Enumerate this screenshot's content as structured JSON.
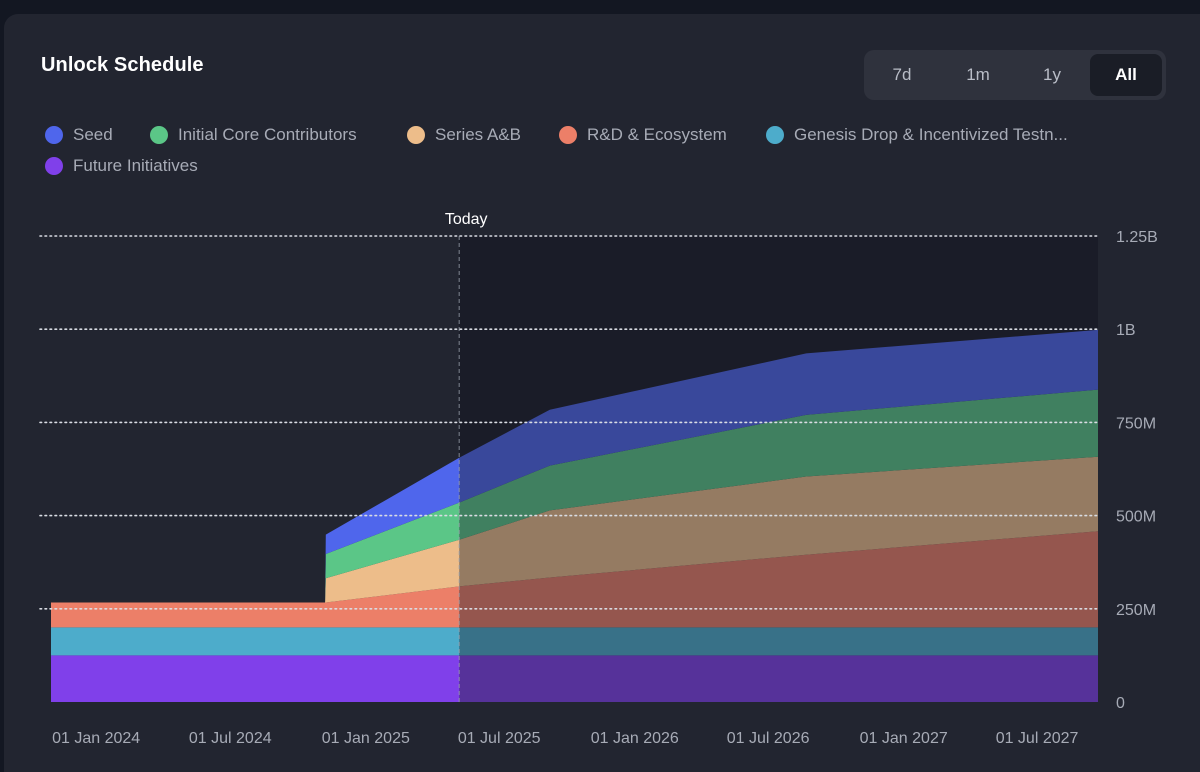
{
  "card": {
    "title": "Unlock Schedule"
  },
  "range_selector": {
    "options": [
      "7d",
      "1m",
      "1y",
      "All"
    ],
    "selected": "All"
  },
  "colors": {
    "background": "#222530",
    "future_shade": "#191b26",
    "grid": "#d9dce3",
    "axis_text": "#a7abb6"
  },
  "chart_data": {
    "type": "area",
    "stacked": true,
    "title": "",
    "xlabel": "",
    "ylabel": "",
    "today_label": "Today",
    "today": "2025-07-01",
    "x_range": [
      "2023-12-25",
      "2027-11-15"
    ],
    "ylim": [
      0,
      1250000000
    ],
    "y_ticks": [
      {
        "value": 0,
        "label": "0"
      },
      {
        "value": 250000000,
        "label": "250M"
      },
      {
        "value": 500000000,
        "label": "500M"
      },
      {
        "value": 750000000,
        "label": "750M"
      },
      {
        "value": 1000000000,
        "label": "1B"
      },
      {
        "value": 1250000000,
        "label": "1.25B"
      }
    ],
    "x_ticks": [
      {
        "date": "2024-01-01",
        "label": "01 Jan 2024"
      },
      {
        "date": "2024-07-01",
        "label": "01 Jul 2024"
      },
      {
        "date": "2025-01-01",
        "label": "01 Jan 2025"
      },
      {
        "date": "2025-07-01",
        "label": "01 Jul 2025"
      },
      {
        "date": "2026-01-01",
        "label": "01 Jan 2026"
      },
      {
        "date": "2026-07-01",
        "label": "01 Jul 2026"
      },
      {
        "date": "2027-01-01",
        "label": "01 Jan 2027"
      },
      {
        "date": "2027-07-01",
        "label": "01 Jul 2027"
      }
    ],
    "grid": true,
    "legend_position": "top-left",
    "x": [
      "2023-12-25",
      "2024-12-31",
      "2025-01-01",
      "2025-07-01",
      "2025-11-01",
      "2026-10-15",
      "2027-11-15"
    ],
    "series": [
      {
        "name": "Future Initiatives",
        "color": "#8040ea",
        "values": [
          125000000,
          125000000,
          125000000,
          125000000,
          125000000,
          125000000,
          125000000
        ]
      },
      {
        "name": "Genesis Drop & Incentivized Testn...",
        "color": "#4daccb",
        "values": [
          75000000,
          75000000,
          75000000,
          75000000,
          75000000,
          75000000,
          75000000
        ]
      },
      {
        "name": "R&D & Ecosystem",
        "color": "#ec7f68",
        "values": [
          67000000,
          67000000,
          67000000,
          110000000,
          134000000,
          195000000,
          258000000
        ]
      },
      {
        "name": "Series A&B",
        "color": "#edbd8a",
        "values": [
          0,
          0,
          65000000,
          125000000,
          180000000,
          210000000,
          200000000
        ]
      },
      {
        "name": "Initial Core Contributors",
        "color": "#5bc687",
        "values": [
          0,
          0,
          65000000,
          100000000,
          120000000,
          165000000,
          180000000
        ]
      },
      {
        "name": "Seed",
        "color": "#4f66ec",
        "values": [
          0,
          0,
          52000000,
          120000000,
          150000000,
          165000000,
          160000000
        ]
      }
    ]
  }
}
